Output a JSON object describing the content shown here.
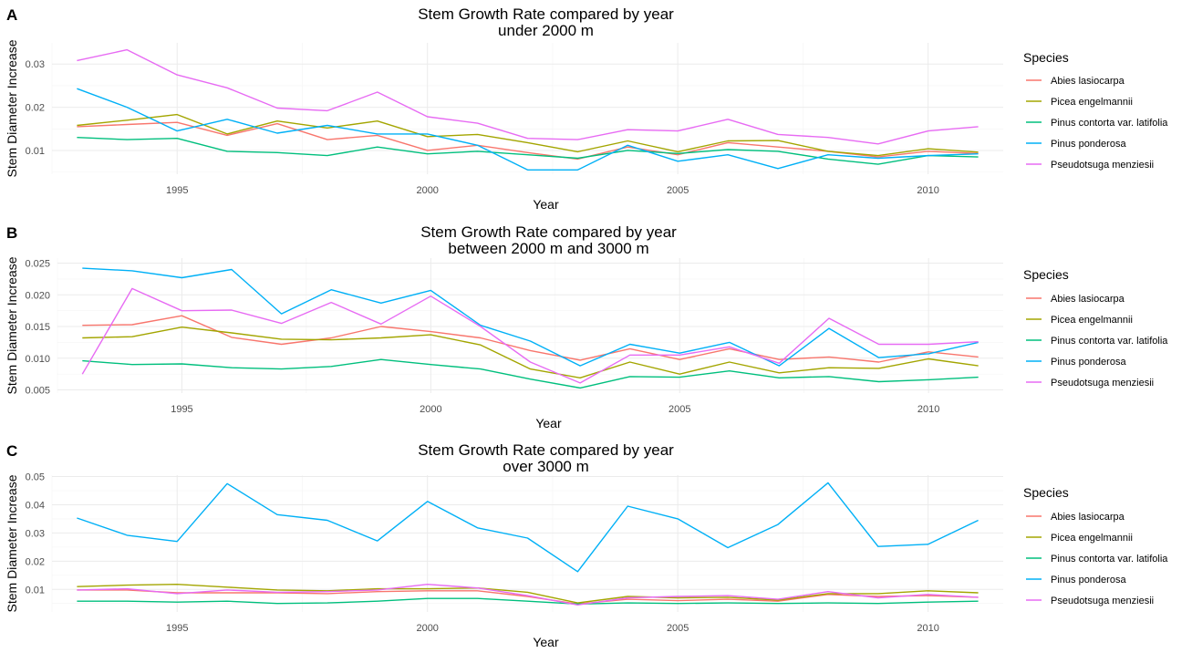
{
  "chart_data": [
    {
      "type": "line",
      "panel": "A",
      "title": [
        "Stem Growth Rate compared by year",
        "under 2000 m"
      ],
      "xlabel": "Year",
      "ylabel": "Stem Diameter Increase",
      "xlim": [
        1992.5,
        2011.5
      ],
      "ylim": [
        0.0045,
        0.0349
      ],
      "xticks": [
        1995,
        2000,
        2005,
        2010
      ],
      "yticks": [
        0.01,
        0.02,
        0.03
      ],
      "ytick_labels": [
        "0.01",
        "0.02",
        "0.03"
      ],
      "grid": true,
      "legend": {
        "title": "Species",
        "position": "right"
      },
      "x": [
        1993,
        1994,
        1995,
        1996,
        1997,
        1998,
        1999,
        2000,
        2001,
        2002,
        2003,
        2004,
        2005,
        2006,
        2007,
        2008,
        2009,
        2010,
        2011
      ],
      "series": [
        {
          "name": "Abies lasiocarpa",
          "color": "#F8766D",
          "values": [
            0.0155,
            0.016,
            0.0165,
            0.0135,
            0.0162,
            0.0125,
            0.0135,
            0.01,
            0.0112,
            0.0095,
            0.008,
            0.0108,
            0.009,
            0.0118,
            0.0108,
            0.0098,
            0.0085,
            0.0098,
            0.0093
          ]
        },
        {
          "name": "Picea engelmannii",
          "color": "#A3A500",
          "values": [
            0.0158,
            0.017,
            0.0183,
            0.0138,
            0.0168,
            0.0152,
            0.0168,
            0.0132,
            0.0137,
            0.0118,
            0.0097,
            0.0122,
            0.0097,
            0.0122,
            0.0123,
            0.0098,
            0.0088,
            0.0104,
            0.0096
          ]
        },
        {
          "name": "Pinus contorta var. latifolia",
          "color": "#00BF7D",
          "values": [
            0.013,
            0.0125,
            0.0128,
            0.0098,
            0.0095,
            0.0088,
            0.0108,
            0.0092,
            0.0098,
            0.009,
            0.0082,
            0.01,
            0.0093,
            0.0102,
            0.0098,
            0.008,
            0.0068,
            0.0088,
            0.0085
          ]
        },
        {
          "name": "Pinus ponderosa",
          "color": "#00B0F6",
          "values": [
            0.0243,
            0.02,
            0.0145,
            0.0172,
            0.014,
            0.0158,
            0.0138,
            0.0138,
            0.0112,
            0.0055,
            0.0055,
            0.0112,
            0.0075,
            0.009,
            0.0058,
            0.009,
            0.0082,
            0.0088,
            0.0092
          ]
        },
        {
          "name": "Pseudotsuga menziesii",
          "color": "#E76BF3",
          "values": [
            0.0308,
            0.0333,
            0.0275,
            0.0245,
            0.0198,
            0.0192,
            0.0235,
            0.0178,
            0.0163,
            0.0128,
            0.0125,
            0.0148,
            0.0145,
            0.0172,
            0.0137,
            0.013,
            0.0115,
            0.0145,
            0.0155
          ]
        }
      ]
    },
    {
      "type": "line",
      "panel": "B",
      "title": [
        "Stem Growth Rate compared by year",
        "between 2000 m and 3000 m"
      ],
      "xlabel": "Year",
      "ylabel": "Stem Diameter Increase",
      "xlim": [
        1992.5,
        2011.5
      ],
      "ylim": [
        0.0045,
        0.0258
      ],
      "xticks": [
        1995,
        2000,
        2005,
        2010
      ],
      "yticks": [
        0.005,
        0.01,
        0.015,
        0.02,
        0.025
      ],
      "ytick_labels": [
        "0.005",
        "0.010",
        "0.015",
        "0.020",
        "0.025"
      ],
      "grid": true,
      "legend": {
        "title": "Species",
        "position": "right"
      },
      "x": [
        1993,
        1994,
        1995,
        1996,
        1997,
        1998,
        1999,
        2000,
        2001,
        2002,
        2003,
        2004,
        2005,
        2006,
        2007,
        2008,
        2009,
        2010,
        2011
      ],
      "series": [
        {
          "name": "Abies lasiocarpa",
          "color": "#F8766D",
          "values": [
            0.0152,
            0.0153,
            0.0167,
            0.0133,
            0.0122,
            0.0132,
            0.015,
            0.0142,
            0.0132,
            0.0112,
            0.0097,
            0.0115,
            0.0098,
            0.0115,
            0.0098,
            0.0102,
            0.0094,
            0.011,
            0.0102
          ]
        },
        {
          "name": "Picea engelmannii",
          "color": "#A3A500",
          "values": [
            0.0132,
            0.0134,
            0.0149,
            0.014,
            0.013,
            0.0129,
            0.0132,
            0.0137,
            0.0121,
            0.0083,
            0.0069,
            0.0094,
            0.0075,
            0.0094,
            0.0077,
            0.0085,
            0.0084,
            0.0099,
            0.0088
          ]
        },
        {
          "name": "Pinus contorta var. latifolia",
          "color": "#00BF7D",
          "values": [
            0.0096,
            0.009,
            0.0091,
            0.0085,
            0.0083,
            0.0087,
            0.0098,
            0.009,
            0.0083,
            0.0067,
            0.0053,
            0.0071,
            0.007,
            0.008,
            0.0069,
            0.0071,
            0.0063,
            0.0066,
            0.007
          ]
        },
        {
          "name": "Pinus ponderosa",
          "color": "#00B0F6",
          "values": [
            0.0242,
            0.0238,
            0.0227,
            0.024,
            0.017,
            0.0208,
            0.0187,
            0.0207,
            0.0152,
            0.0127,
            0.0088,
            0.0122,
            0.0108,
            0.0125,
            0.0088,
            0.0147,
            0.0101,
            0.0107,
            0.0125
          ]
        },
        {
          "name": "Pseudotsuga menziesii",
          "color": "#E76BF3",
          "values": [
            0.0075,
            0.021,
            0.0175,
            0.0176,
            0.0155,
            0.0188,
            0.0154,
            0.0198,
            0.015,
            0.0094,
            0.0061,
            0.0105,
            0.0105,
            0.0118,
            0.0092,
            0.0163,
            0.0122,
            0.0122,
            0.0126
          ]
        }
      ]
    },
    {
      "type": "line",
      "panel": "C",
      "title": [
        "Stem Growth Rate compared by year",
        "over 3000 m"
      ],
      "xlabel": "Year",
      "ylabel": "Stem Diameter Increase",
      "xlim": [
        1992.5,
        2011.5
      ],
      "ylim": [
        0.002,
        0.0505
      ],
      "xticks": [
        1995,
        2000,
        2005,
        2010
      ],
      "yticks": [
        0.01,
        0.02,
        0.03,
        0.04,
        0.05
      ],
      "ytick_labels": [
        "0.01",
        "0.02",
        "0.03",
        "0.04",
        "0.05"
      ],
      "grid": true,
      "legend": {
        "title": "Species",
        "position": "right"
      },
      "x": [
        1993,
        1994,
        1995,
        1996,
        1997,
        1998,
        1999,
        2000,
        2001,
        2002,
        2003,
        2004,
        2005,
        2006,
        2007,
        2008,
        2009,
        2010,
        2011
      ],
      "series": [
        {
          "name": "Abies lasiocarpa",
          "color": "#F8766D",
          "values": [
            0.0098,
            0.0098,
            0.0088,
            0.0088,
            0.0088,
            0.0085,
            0.0092,
            0.0095,
            0.0095,
            0.0075,
            0.0048,
            0.0065,
            0.006,
            0.0065,
            0.0058,
            0.0082,
            0.0075,
            0.0078,
            0.0072
          ]
        },
        {
          "name": "Picea engelmannii",
          "color": "#A3A500",
          "values": [
            0.011,
            0.0115,
            0.0118,
            0.0108,
            0.0098,
            0.0095,
            0.0102,
            0.0102,
            0.0105,
            0.009,
            0.0052,
            0.0075,
            0.007,
            0.0072,
            0.0062,
            0.0085,
            0.0085,
            0.0095,
            0.0088
          ]
        },
        {
          "name": "Pinus contorta var. latifolia",
          "color": "#00BF7D",
          "values": [
            0.0058,
            0.0058,
            0.0055,
            0.0058,
            0.005,
            0.0052,
            0.0058,
            0.0068,
            0.0068,
            0.0058,
            0.0048,
            0.0052,
            0.005,
            0.0052,
            0.005,
            0.0052,
            0.005,
            0.0055,
            0.0058
          ]
        },
        {
          "name": "Pinus ponderosa",
          "color": "#00B0F6",
          "values": [
            0.0353,
            0.0292,
            0.027,
            0.0475,
            0.0365,
            0.0345,
            0.0272,
            0.0412,
            0.0318,
            0.0282,
            0.0163,
            0.0395,
            0.035,
            0.0248,
            0.033,
            0.0478,
            0.0252,
            0.026,
            0.0345
          ]
        },
        {
          "name": "Pseudotsuga menziesii",
          "color": "#E76BF3",
          "values": [
            0.0098,
            0.0102,
            0.0085,
            0.0098,
            0.009,
            0.0092,
            0.0098,
            0.0118,
            0.0105,
            0.0078,
            0.0045,
            0.007,
            0.0075,
            0.0078,
            0.0065,
            0.0092,
            0.007,
            0.0082,
            0.0072
          ]
        }
      ]
    }
  ]
}
